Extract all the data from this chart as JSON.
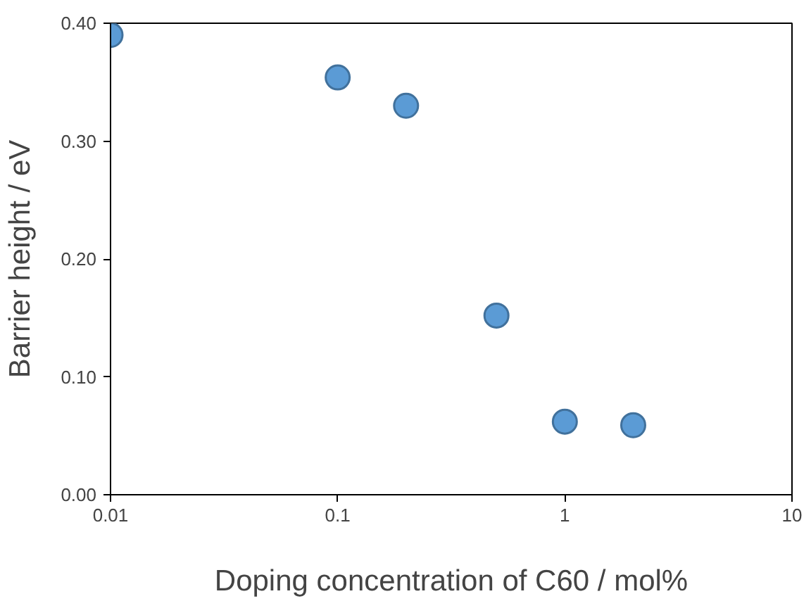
{
  "chart_data": {
    "type": "scatter",
    "xlabel": "Doping concentration of C60 / mol%",
    "ylabel": "Barrier height / eV",
    "x": [
      0.01,
      0.1,
      0.2,
      0.5,
      1,
      2
    ],
    "values": [
      0.39,
      0.354,
      0.33,
      0.152,
      0.062,
      0.059
    ],
    "color": "#5b9bd5",
    "marker": "circle",
    "log": "x",
    "grid": false,
    "xlim": [
      0.01,
      10
    ],
    "xticks": [
      0.01,
      0.1,
      1,
      10
    ],
    "ylim": [
      0,
      0.4
    ],
    "yticks": [
      {
        "value": 0,
        "label": "0.00"
      },
      {
        "value": 0.1,
        "label": "0.10"
      },
      {
        "value": 0.2,
        "label": "0.20"
      },
      {
        "value": 0.3,
        "label": "0.30"
      },
      {
        "value": 0.4,
        "label": "0.40"
      }
    ]
  }
}
